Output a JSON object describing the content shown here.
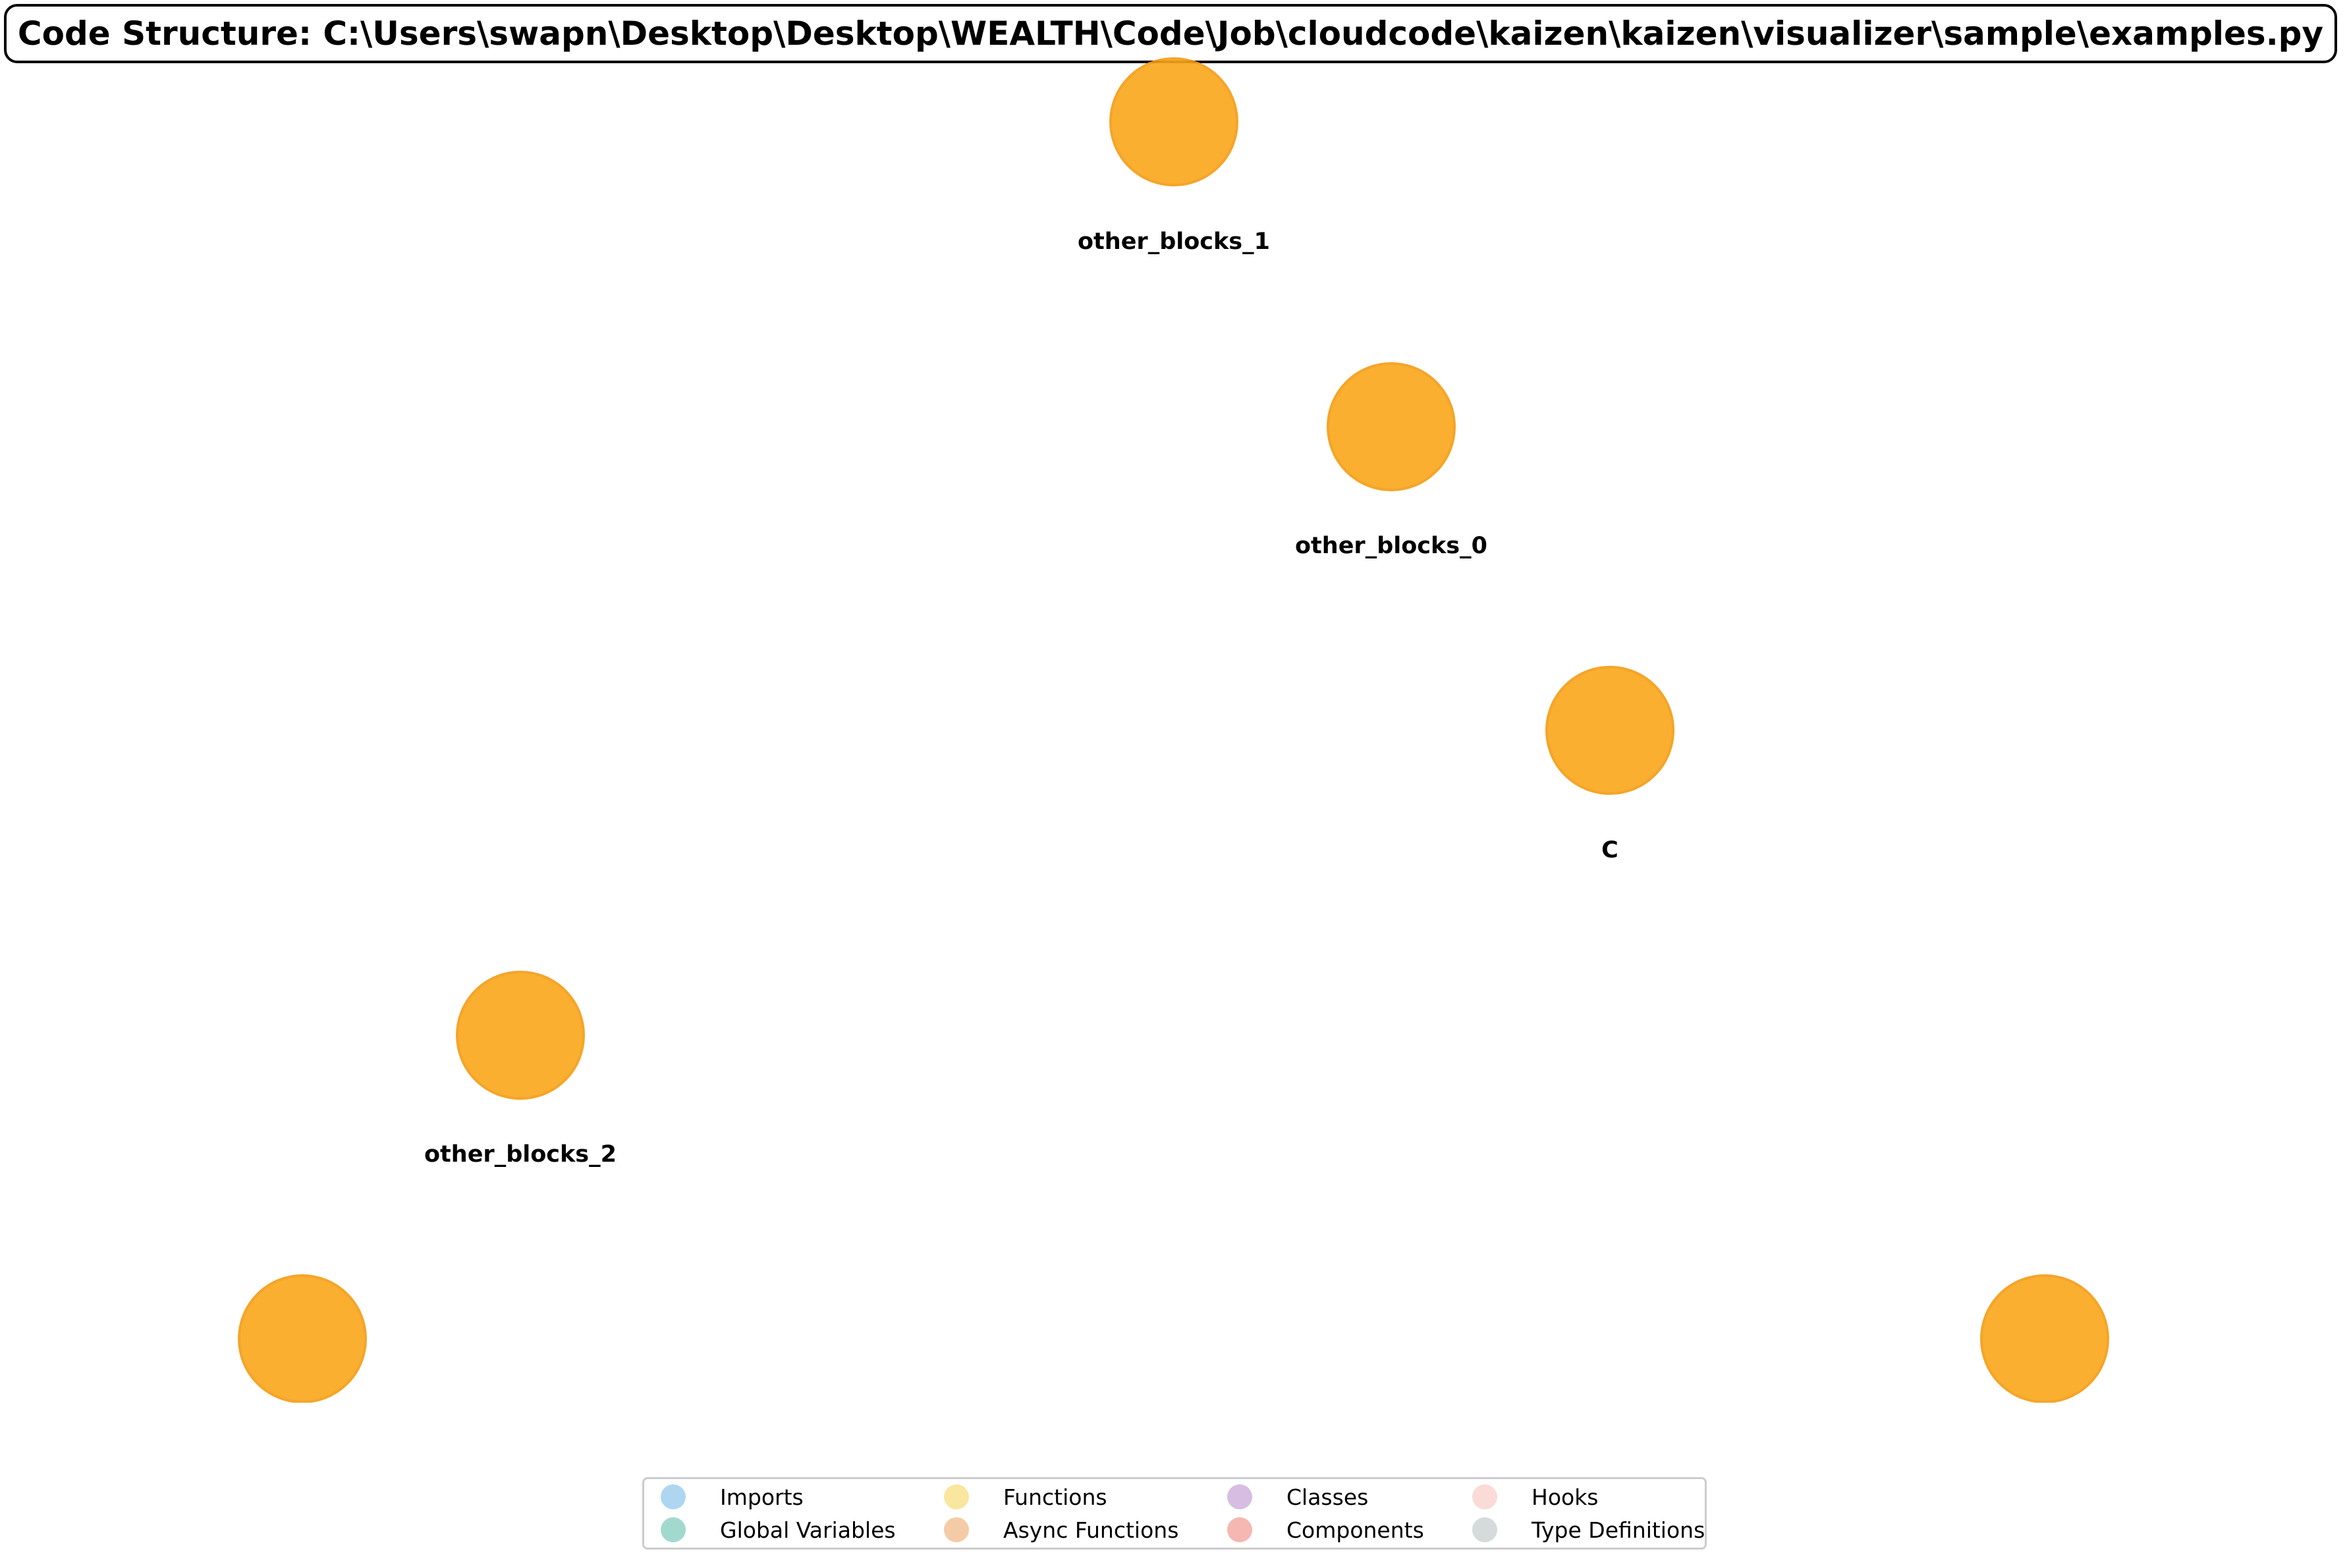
{
  "title": "Code Structure: C:\\Users\\swapn\\Desktop\\Desktop\\WEALTH\\Code\\Job\\cloudcode\\kaizen\\kaizen\\visualizer\\sample\\examples.py",
  "node_color": "#FBA71B",
  "nodes": [
    {
      "label": "other_blocks_1"
    },
    {
      "label": "other_blocks_0"
    },
    {
      "label": "C"
    },
    {
      "label": "other_blocks_2"
    },
    {
      "label": ""
    },
    {
      "label": ""
    }
  ],
  "legend": [
    {
      "label": "Imports",
      "color": "#AED6F1"
    },
    {
      "label": "Global Variables",
      "color": "#A2D9CE"
    },
    {
      "label": "Functions",
      "color": "#F9E79F"
    },
    {
      "label": "Async Functions",
      "color": "#F5CBA7"
    },
    {
      "label": "Classes",
      "color": "#D7BDE2"
    },
    {
      "label": "Components",
      "color": "#F5B7B1"
    },
    {
      "label": "Hooks",
      "color": "#FADBD8"
    },
    {
      "label": "Type Definitions",
      "color": "#D5DBDB"
    }
  ]
}
